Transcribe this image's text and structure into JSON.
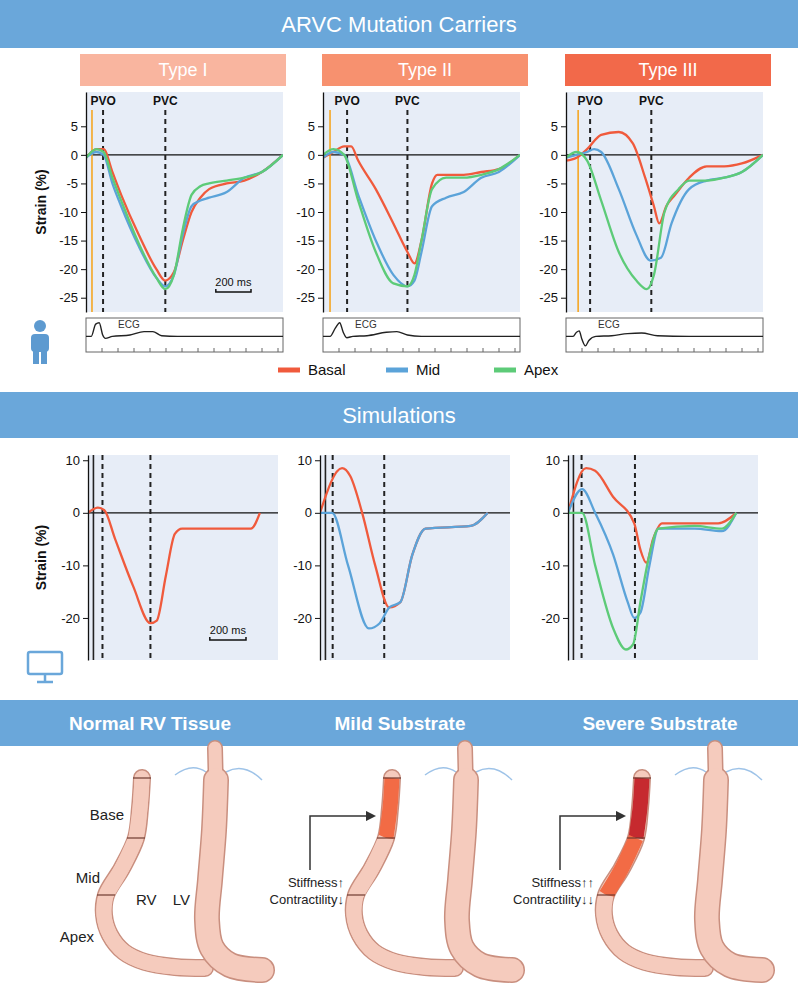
{
  "headers": {
    "top": "ARVC Mutation Carriers",
    "middle": "Simulations",
    "bottom": [
      "Normal RV Tissue",
      "Mild Substrate",
      "Severe Substrate"
    ]
  },
  "type_labels": [
    {
      "label": "Type I",
      "color": "#f9b59f"
    },
    {
      "label": "Type II",
      "color": "#f7916f"
    },
    {
      "label": "Type III",
      "color": "#f2694a"
    }
  ],
  "chart_data": [
    {
      "type": "line",
      "xlim": [
        0,
        1120
      ],
      "ylim": [
        -27.5,
        11
      ],
      "yticks": [
        5,
        0,
        -5,
        -10,
        -15,
        -20,
        -25
      ],
      "tick_labels": "y",
      "y_label": "Strain (%)",
      "markers": [
        {
          "value": 34,
          "color": "#f5a623",
          "line_style": "solid"
        },
        {
          "value": 97,
          "label": "PVO",
          "color": "#222222",
          "line_style": "dashed"
        },
        {
          "value": 451,
          "label": "PVC",
          "color": "#222222",
          "line_style": "dashed"
        }
      ],
      "scale_bar": {
        "value": 200,
        "label": "200 ms"
      },
      "series": [
        {
          "name": "Basal",
          "color": "#f05a3c",
          "x": [
            0,
            60,
            100,
            150,
            200,
            300,
            400,
            450,
            500,
            550,
            600,
            650,
            700,
            800,
            900,
            1000,
            1120
          ],
          "values": [
            -0.5,
            1,
            1,
            -3,
            -7,
            -14,
            -20,
            -22,
            -20.5,
            -15,
            -10,
            -7.5,
            -6,
            -5,
            -4.5,
            -3,
            0
          ]
        },
        {
          "name": "Mid",
          "color": "#5ba3d9",
          "x": [
            0,
            60,
            100,
            150,
            200,
            300,
            400,
            450,
            500,
            550,
            600,
            650,
            700,
            800,
            900,
            1000,
            1120
          ],
          "values": [
            -0.5,
            0.5,
            0,
            -5,
            -9,
            -16,
            -21.5,
            -23,
            -21,
            -14,
            -9,
            -8,
            -7.5,
            -6.5,
            -4,
            -3,
            0
          ]
        },
        {
          "name": "Apex",
          "color": "#5dcb78",
          "x": [
            0,
            60,
            100,
            150,
            200,
            300,
            400,
            450,
            500,
            550,
            600,
            650,
            700,
            800,
            900,
            1000,
            1120
          ],
          "values": [
            -0.5,
            1,
            0.5,
            -4,
            -8,
            -15.5,
            -21.5,
            -23.5,
            -21,
            -13,
            -7,
            -5.5,
            -5,
            -4.5,
            -4,
            -3,
            0
          ]
        }
      ],
      "ecg": {
        "label": "ECG",
        "ylim": [
          -1,
          1.2
        ],
        "x": [
          0,
          30,
          55,
          75,
          95,
          110,
          150,
          250,
          330,
          380,
          430,
          520,
          700,
          900,
          1120
        ],
        "values": [
          0,
          0,
          0.9,
          1.0,
          0.1,
          -0.15,
          0,
          0.1,
          0.35,
          0.35,
          0.05,
          0,
          0,
          0,
          0
        ]
      }
    },
    {
      "type": "line",
      "xlim": [
        0,
        1120
      ],
      "ylim": [
        -27.5,
        11
      ],
      "yticks": [
        5,
        0,
        -5,
        -10,
        -15,
        -20,
        -25
      ],
      "tick_labels": "y",
      "legend": "bottom",
      "markers": [
        {
          "value": 40,
          "color": "#f5a623",
          "line_style": "solid"
        },
        {
          "value": 137,
          "label": "PVO",
          "color": "#222222",
          "line_style": "dashed"
        },
        {
          "value": 480,
          "label": "PVC",
          "color": "#222222",
          "line_style": "dashed"
        }
      ],
      "series": [
        {
          "name": "Basal",
          "color": "#f05a3c",
          "x": [
            0,
            60,
            120,
            160,
            200,
            300,
            400,
            480,
            520,
            560,
            620,
            650,
            700,
            800,
            900,
            1000,
            1120
          ],
          "values": [
            -0.5,
            0.5,
            1.5,
            1.5,
            -1,
            -6,
            -12,
            -17,
            -19,
            -15,
            -5,
            -3.5,
            -3.5,
            -3.5,
            -3,
            -2.5,
            0
          ]
        },
        {
          "name": "Mid",
          "color": "#5ba3d9",
          "x": [
            0,
            60,
            120,
            200,
            300,
            400,
            480,
            520,
            560,
            620,
            700,
            800,
            900,
            1000,
            1120
          ],
          "values": [
            -0.5,
            0.5,
            0,
            -7,
            -15,
            -21,
            -23,
            -22,
            -17,
            -9,
            -7.5,
            -6.5,
            -4,
            -3,
            0
          ]
        },
        {
          "name": "Apex",
          "color": "#5dcb78",
          "x": [
            0,
            60,
            120,
            200,
            300,
            400,
            480,
            520,
            560,
            620,
            700,
            800,
            900,
            1000,
            1120
          ],
          "values": [
            0,
            1,
            0,
            -8,
            -17,
            -22.5,
            -23,
            -21,
            -15,
            -6,
            -4,
            -4,
            -3.5,
            -2.5,
            0
          ]
        }
      ],
      "ecg": {
        "label": "ECG",
        "ylim": [
          -1,
          1.2
        ],
        "x": [
          0,
          40,
          70,
          95,
          115,
          135,
          170,
          250,
          360,
          420,
          480,
          560,
          800,
          1120
        ],
        "values": [
          0,
          0,
          0.6,
          1.0,
          0.3,
          -0.1,
          0,
          0.05,
          0.3,
          0.35,
          0.1,
          0,
          0,
          0
        ]
      }
    },
    {
      "type": "line",
      "xlim": [
        0,
        1120
      ],
      "ylim": [
        -27.5,
        11
      ],
      "yticks": [
        5,
        0,
        -5,
        -10,
        -15,
        -20,
        -25
      ],
      "tick_labels": "y",
      "markers": [
        {
          "value": 69,
          "color": "#f5a623",
          "line_style": "solid"
        },
        {
          "value": 137,
          "label": "PVO",
          "color": "#222222",
          "line_style": "dashed"
        },
        {
          "value": 485,
          "label": "PVC",
          "color": "#222222",
          "line_style": "dashed"
        }
      ],
      "series": [
        {
          "name": "Basal",
          "color": "#f05a3c",
          "x": [
            0,
            60,
            120,
            200,
            300,
            380,
            450,
            500,
            530,
            570,
            620,
            700,
            800,
            900,
            1000,
            1120
          ],
          "values": [
            -1,
            -0.5,
            1,
            3.5,
            4,
            2,
            -4,
            -9,
            -12,
            -9,
            -7,
            -4,
            -2,
            -2,
            -1.5,
            0
          ]
        },
        {
          "name": "Mid",
          "color": "#5ba3d9",
          "x": [
            0,
            60,
            120,
            160,
            200,
            300,
            400,
            480,
            540,
            600,
            700,
            800,
            900,
            1000,
            1120
          ],
          "values": [
            -0.5,
            0,
            0.5,
            1,
            0.5,
            -6,
            -14,
            -18.5,
            -18,
            -12,
            -6,
            -4.5,
            -4,
            -3,
            0
          ]
        },
        {
          "name": "Apex",
          "color": "#5dcb78",
          "x": [
            0,
            60,
            120,
            200,
            300,
            400,
            460,
            500,
            560,
            640,
            700,
            800,
            900,
            1000,
            1120
          ],
          "values": [
            -0.5,
            0.5,
            -1,
            -8,
            -17,
            -22,
            -23.5,
            -21,
            -10,
            -6,
            -4.5,
            -4.5,
            -4,
            -3,
            0
          ]
        }
      ],
      "ecg": {
        "label": "ECG",
        "ylim": [
          -1,
          1.2
        ],
        "x": [
          0,
          40,
          60,
          75,
          90,
          110,
          130,
          170,
          260,
          350,
          430,
          520,
          700,
          1120
        ],
        "values": [
          0,
          0,
          0.3,
          0.4,
          -0.2,
          -0.7,
          -0.3,
          0,
          0.05,
          0.2,
          0.25,
          0.05,
          0,
          0
        ]
      }
    },
    {
      "type": "line",
      "xlim": [
        0,
        1050
      ],
      "ylim": [
        -28,
        11
      ],
      "yticks": [
        10,
        0,
        -10,
        -20
      ],
      "tick_labels": "y",
      "y_label": "Strain (%)",
      "markers": [
        {
          "value": 30,
          "color": "#222222",
          "line_style": "solid"
        },
        {
          "value": 80,
          "color": "#222222",
          "line_style": "dashed"
        },
        {
          "value": 345,
          "color": "#222222",
          "line_style": "dashed"
        }
      ],
      "scale_bar": {
        "value": 200,
        "label": "200 ms"
      },
      "series": [
        {
          "name": "Basal",
          "color": "#f05a3c",
          "x": [
            0,
            55,
            90,
            150,
            250,
            345,
            380,
            430,
            480,
            520,
            800,
            900,
            950
          ],
          "values": [
            0,
            1,
            0.5,
            -5,
            -14,
            -21,
            -20.5,
            -12,
            -4,
            -3,
            -3,
            -3,
            0
          ]
        }
      ]
    },
    {
      "type": "line",
      "xlim": [
        0,
        1050
      ],
      "ylim": [
        -28,
        11
      ],
      "yticks": [
        10,
        0,
        -10,
        -20
      ],
      "tick_labels": "y",
      "markers": [
        {
          "value": 30,
          "color": "#222222",
          "line_style": "solid"
        },
        {
          "value": 70,
          "color": "#222222",
          "line_style": "dashed"
        },
        {
          "value": 355,
          "color": "#222222",
          "line_style": "dashed"
        }
      ],
      "series": [
        {
          "name": "Basal",
          "color": "#f05a3c",
          "x": [
            0,
            122,
            167,
            233,
            305,
            383,
            444,
            510,
            583,
            833,
            927
          ],
          "values": [
            0,
            8.5,
            7,
            0,
            -10,
            -18,
            -17,
            -8,
            -3,
            -2.5,
            0
          ]
        },
        {
          "name": "Mid",
          "color": "#5ba3d9",
          "x": [
            0,
            67,
            155,
            270,
            330,
            383,
            444,
            510,
            583,
            833,
            927
          ],
          "values": [
            0,
            0,
            -10,
            -22,
            -21,
            -18,
            -17,
            -8,
            -3,
            -2.5,
            0
          ]
        }
      ]
    },
    {
      "type": "line",
      "xlim": [
        0,
        1050
      ],
      "ylim": [
        -28,
        11
      ],
      "yticks": [
        10,
        0,
        -10,
        -20
      ],
      "tick_labels": "y",
      "markers": [
        {
          "value": 30,
          "color": "#222222",
          "line_style": "solid"
        },
        {
          "value": 75,
          "color": "#222222",
          "line_style": "dashed"
        },
        {
          "value": 370,
          "color": "#222222",
          "line_style": "dashed"
        }
      ],
      "series": [
        {
          "name": "Basal",
          "color": "#f05a3c",
          "x": [
            0,
            100,
            150,
            250,
            366,
            400,
            433,
            470,
            520,
            700,
            830,
            930
          ],
          "values": [
            0,
            8.5,
            8,
            3,
            -2,
            -7,
            -9.5,
            -5,
            -2,
            -2,
            -2,
            0
          ]
        },
        {
          "name": "Mid",
          "color": "#5ba3d9",
          "x": [
            0,
            78,
            150,
            250,
            330,
            366,
            400,
            450,
            500,
            700,
            850,
            930
          ],
          "values": [
            0,
            4.5,
            0,
            -8,
            -17,
            -20,
            -19,
            -10,
            -3,
            -3,
            -3.5,
            0
          ]
        },
        {
          "name": "Apex",
          "color": "#5dcb78",
          "x": [
            0,
            78,
            150,
            250,
            320,
            360,
            400,
            450,
            500,
            700,
            850,
            930
          ],
          "values": [
            0,
            0,
            -10,
            -22,
            -26,
            -25,
            -17,
            -8,
            -3,
            -2.5,
            -3,
            0
          ]
        }
      ]
    }
  ],
  "diagrams": [
    {
      "colors": [
        "#f5cbbd",
        "#f5cbbd",
        "#f5cbbd"
      ],
      "labels": {
        "base": "Base",
        "mid": "Mid",
        "apex": "Apex",
        "rv": "RV",
        "lv": "LV"
      }
    },
    {
      "colors": [
        "#f26b45",
        "#f5cbbd",
        "#f5cbbd"
      ],
      "annotation": [
        "Stiffness↑",
        "Contractility↓"
      ]
    },
    {
      "colors": [
        "#c62a2f",
        "#f26b45",
        "#f5cbbd"
      ],
      "annotation": [
        "Stiffness↑↑",
        "Contractility↓↓"
      ]
    }
  ]
}
